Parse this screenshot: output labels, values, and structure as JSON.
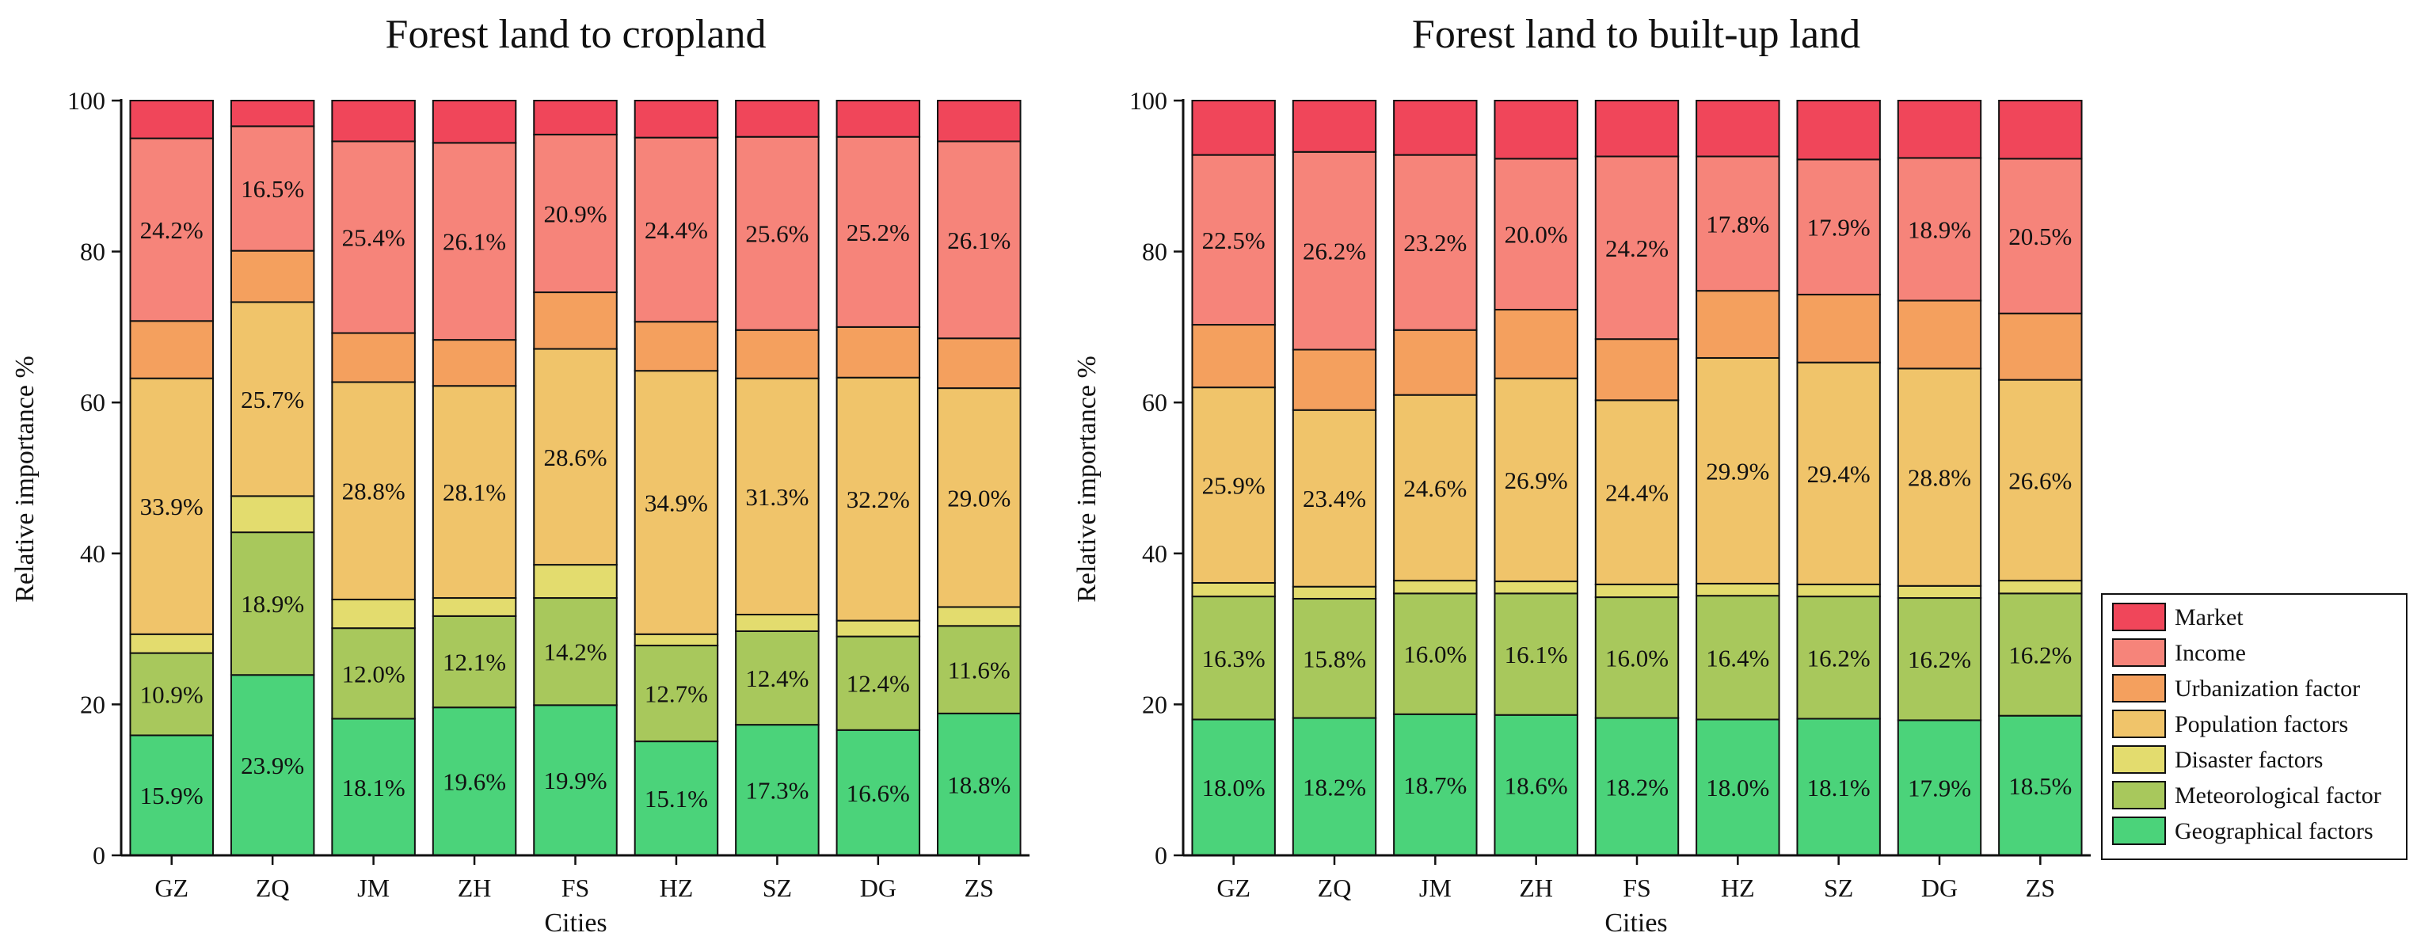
{
  "colors": {
    "Market": "#f0465a",
    "Income": "#f6847a",
    "Urbanization factor": "#f4a05e",
    "Population factors": "#f0c46a",
    "Disaster factors": "#e3dc6e",
    "Meteorological factor": "#a8c85c",
    "Geographical factors": "#4bd37a"
  },
  "legend": {
    "entries": [
      "Market",
      "Income",
      "Urbanization factor",
      "Population factors",
      "Disaster factors",
      "Meteorological factor",
      "Geographical factors"
    ]
  },
  "chart_data": [
    {
      "type": "bar",
      "stacked": true,
      "title": "Forest land to cropland",
      "xlabel": "Cities",
      "ylabel": "Relative importance %",
      "ylim": [
        0,
        100
      ],
      "yticks": [
        0,
        20,
        40,
        60,
        80,
        100
      ],
      "categories": [
        "GZ",
        "ZQ",
        "JM",
        "ZH",
        "FS",
        "HZ",
        "SZ",
        "DG",
        "ZS"
      ],
      "series": [
        {
          "name": "Geographical factors",
          "values": [
            15.9,
            23.9,
            18.1,
            19.6,
            19.9,
            15.1,
            17.3,
            16.6,
            18.8
          ],
          "labels": [
            "15.9%",
            "23.9%",
            "18.1%",
            "19.6%",
            "19.9%",
            "15.1%",
            "17.3%",
            "16.6%",
            "18.8%"
          ]
        },
        {
          "name": "Meteorological factor",
          "values": [
            10.9,
            18.9,
            12.0,
            12.1,
            14.2,
            12.7,
            12.4,
            12.4,
            11.6
          ],
          "labels": [
            "10.9%",
            "18.9%",
            "12.0%",
            "12.1%",
            "14.2%",
            "12.7%",
            "12.4%",
            "12.4%",
            "11.6%"
          ]
        },
        {
          "name": "Disaster factors",
          "values": [
            2.5,
            4.8,
            3.8,
            2.4,
            4.4,
            1.5,
            2.2,
            2.1,
            2.5
          ],
          "labels": [
            "",
            "",
            "",
            "",
            "",
            "",
            "",
            "",
            ""
          ]
        },
        {
          "name": "Population factors",
          "values": [
            33.9,
            25.7,
            28.8,
            28.1,
            28.6,
            34.9,
            31.3,
            32.2,
            29.0
          ],
          "labels": [
            "33.9%",
            "25.7%",
            "28.8%",
            "28.1%",
            "28.6%",
            "34.9%",
            "31.3%",
            "32.2%",
            "29.0%"
          ]
        },
        {
          "name": "Urbanization factor",
          "values": [
            7.6,
            6.8,
            6.5,
            6.1,
            7.5,
            6.5,
            6.4,
            6.7,
            6.6
          ],
          "labels": [
            "",
            "",
            "",
            "",
            "",
            "",
            "",
            "",
            ""
          ]
        },
        {
          "name": "Income",
          "values": [
            24.2,
            16.5,
            25.4,
            26.1,
            20.9,
            24.4,
            25.6,
            25.2,
            26.1
          ],
          "labels": [
            "24.2%",
            "16.5%",
            "25.4%",
            "26.1%",
            "20.9%",
            "24.4%",
            "25.6%",
            "25.2%",
            "26.1%"
          ]
        },
        {
          "name": "Market",
          "values": [
            5.0,
            3.4,
            5.4,
            5.6,
            4.5,
            4.9,
            4.8,
            4.8,
            5.4
          ],
          "labels": [
            "",
            "",
            "",
            "",
            "",
            "",
            "",
            "",
            ""
          ]
        }
      ]
    },
    {
      "type": "bar",
      "stacked": true,
      "title": "Forest land to built-up land",
      "xlabel": "Cities",
      "ylabel": "Relative importance %",
      "ylim": [
        0,
        100
      ],
      "yticks": [
        0,
        20,
        40,
        60,
        80,
        100
      ],
      "categories": [
        "GZ",
        "ZQ",
        "JM",
        "ZH",
        "FS",
        "HZ",
        "SZ",
        "DG",
        "ZS"
      ],
      "series": [
        {
          "name": "Geographical factors",
          "values": [
            18.0,
            18.2,
            18.7,
            18.6,
            18.2,
            18.0,
            18.1,
            17.9,
            18.5
          ],
          "labels": [
            "18.0%",
            "18.2%",
            "18.7%",
            "18.6%",
            "18.2%",
            "18.0%",
            "18.1%",
            "17.9%",
            "18.5%"
          ]
        },
        {
          "name": "Meteorological factor",
          "values": [
            16.3,
            15.8,
            16.0,
            16.1,
            16.0,
            16.4,
            16.2,
            16.2,
            16.2
          ],
          "labels": [
            "16.3%",
            "15.8%",
            "16.0%",
            "16.1%",
            "16.0%",
            "16.4%",
            "16.2%",
            "16.2%",
            "16.2%"
          ]
        },
        {
          "name": "Disaster factors",
          "values": [
            1.8,
            1.6,
            1.7,
            1.6,
            1.7,
            1.6,
            1.6,
            1.6,
            1.7
          ],
          "labels": [
            "",
            "",
            "",
            "",
            "",
            "",
            "",
            "",
            ""
          ]
        },
        {
          "name": "Population factors",
          "values": [
            25.9,
            23.4,
            24.6,
            26.9,
            24.4,
            29.9,
            29.4,
            28.8,
            26.6
          ],
          "labels": [
            "25.9%",
            "23.4%",
            "24.6%",
            "26.9%",
            "24.4%",
            "29.9%",
            "29.4%",
            "28.8%",
            "26.6%"
          ]
        },
        {
          "name": "Urbanization factor",
          "values": [
            8.3,
            8.0,
            8.6,
            9.1,
            8.1,
            8.9,
            9.0,
            9.0,
            8.8
          ],
          "labels": [
            "",
            "",
            "",
            "",
            "",
            "",
            "",
            "",
            ""
          ]
        },
        {
          "name": "Income",
          "values": [
            22.5,
            26.2,
            23.2,
            20.0,
            24.2,
            17.8,
            17.9,
            18.9,
            20.5
          ],
          "labels": [
            "22.5%",
            "26.2%",
            "23.2%",
            "20.0%",
            "24.2%",
            "17.8%",
            "17.9%",
            "18.9%",
            "20.5%"
          ]
        },
        {
          "name": "Market",
          "values": [
            7.2,
            6.8,
            7.2,
            7.7,
            7.4,
            7.4,
            7.8,
            7.6,
            7.7
          ],
          "labels": [
            "",
            "",
            "",
            "",
            "",
            "",
            "",
            "",
            ""
          ]
        }
      ]
    }
  ]
}
